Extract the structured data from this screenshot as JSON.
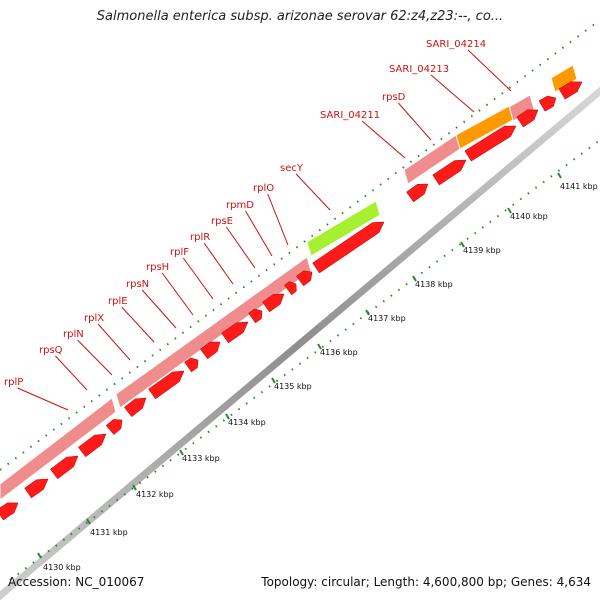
{
  "title": "Salmonella enterica subsp. arizonae serovar 62:z4,z23:--, co...",
  "footer": {
    "accession_label": "Accession:",
    "accession": "NC_010067",
    "topology_label": "Topology:",
    "topology": "circular",
    "length_label": "Length:",
    "length": "4,600,800 bp",
    "genes_label": "Genes:",
    "genes": "4,634"
  },
  "colors": {
    "cds_forward_light": "#f08c8c",
    "cds_forward": "#ff1a1a",
    "highlight_green": "#a6f030",
    "highlight_orange": "#ff9900",
    "label_red": "#cc1111",
    "tick_green": "#2a8a2a",
    "backbone_gray": "#9a9a9a"
  },
  "gene_labels": [
    "rplP",
    "rpsQ",
    "rplN",
    "rplX",
    "rplE",
    "rpsN",
    "rpsH",
    "rplF",
    "rplR",
    "rpsE",
    "rpmD",
    "rplO",
    "secY",
    "SARI_04211",
    "rpsD",
    "SARI_04213",
    "SARI_04214"
  ],
  "ticks": [
    "4130 kbp",
    "4131 kbp",
    "4132 kbp",
    "4133 kbp",
    "4134 kbp",
    "4135 kbp",
    "4136 kbp",
    "4137 kbp",
    "4138 kbp",
    "4139 kbp",
    "4140 kbp",
    "4141 kbp"
  ]
}
